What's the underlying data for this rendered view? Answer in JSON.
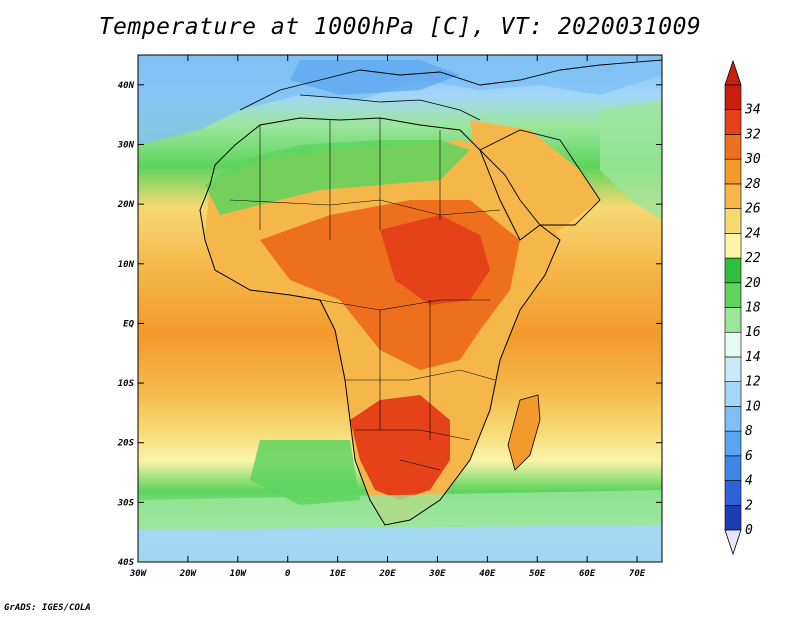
{
  "title": "Temperature at 1000hPa [C], VT: 2020031009",
  "credit": "GrADS: IGES/COLA",
  "map": {
    "lat_range": [
      -40,
      45
    ],
    "lon_range": [
      -30,
      75
    ],
    "lat_ticks": [
      "40N",
      "30N",
      "20N",
      "10N",
      "EQ",
      "10S",
      "20S",
      "30S",
      "40S"
    ],
    "lat_tick_values": [
      40,
      30,
      20,
      10,
      0,
      -10,
      -20,
      -30,
      -40
    ],
    "lon_ticks": [
      "30W",
      "20W",
      "10W",
      "0",
      "10E",
      "20E",
      "30E",
      "40E",
      "50E",
      "60E",
      "70E"
    ],
    "lon_tick_values": [
      -30,
      -20,
      -10,
      0,
      10,
      20,
      30,
      40,
      50,
      60,
      70
    ]
  },
  "colorbar": {
    "labels": [
      "0",
      "2",
      "4",
      "6",
      "8",
      "10",
      "12",
      "14",
      "16",
      "18",
      "20",
      "22",
      "24",
      "26",
      "28",
      "30",
      "32",
      "34"
    ],
    "colors": [
      "#0a1e78",
      "#1e3cb4",
      "#2f62d8",
      "#3f86e8",
      "#5aa5f0",
      "#7ec0f5",
      "#a3d6f8",
      "#caeafa",
      "#e8f9f0",
      "#9be69b",
      "#5ed45e",
      "#2fbf3a",
      "#fbf4a8",
      "#f6d973",
      "#f5b74a",
      "#f39a2b",
      "#ee6f1e",
      "#e5421a",
      "#c8200f"
    ],
    "under_color": "#e6e6fa",
    "over_color": "#c8200f"
  }
}
